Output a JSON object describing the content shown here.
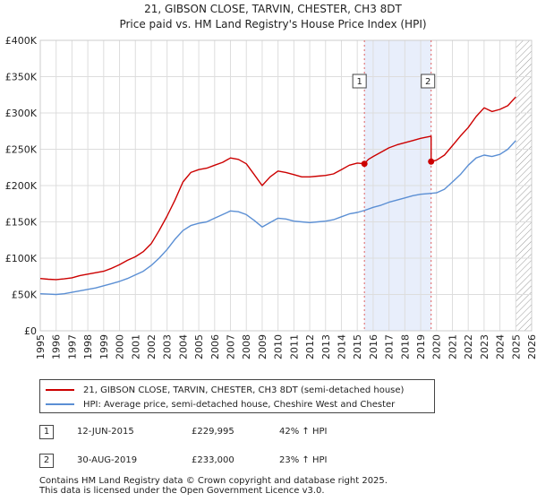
{
  "chart_data": {
    "type": "line",
    "title": "21, GIBSON CLOSE, TARVIN, CHESTER, CH3 8DT",
    "subtitle": "Price paid vs. HM Land Registry's House Price Index (HPI)",
    "xlabel": "",
    "ylabel": "",
    "xlim": [
      1995,
      2026
    ],
    "ylim": [
      0,
      400000
    ],
    "x_ticks": [
      "1995",
      "1996",
      "1997",
      "1998",
      "1999",
      "2000",
      "2001",
      "2002",
      "2003",
      "2004",
      "2005",
      "2006",
      "2007",
      "2008",
      "2009",
      "2010",
      "2011",
      "2012",
      "2013",
      "2014",
      "2015",
      "2016",
      "2017",
      "2018",
      "2019",
      "2020",
      "2021",
      "2022",
      "2023",
      "2024",
      "2025",
      "2026"
    ],
    "y_ticks": [
      {
        "value": 0,
        "label": "£0"
      },
      {
        "value": 50000,
        "label": "£50K"
      },
      {
        "value": 100000,
        "label": "£100K"
      },
      {
        "value": 150000,
        "label": "£150K"
      },
      {
        "value": 200000,
        "label": "£200K"
      },
      {
        "value": 250000,
        "label": "£250K"
      },
      {
        "value": 300000,
        "label": "£300K"
      },
      {
        "value": 350000,
        "label": "£350K"
      },
      {
        "value": 400000,
        "label": "£400K"
      }
    ],
    "grid": true,
    "series": [
      {
        "name": "21, GIBSON CLOSE, TARVIN, CHESTER, CH3 8DT (semi-detached house)",
        "color": "#cc0000",
        "points": [
          [
            1995.0,
            72000
          ],
          [
            1995.5,
            71000
          ],
          [
            1996.0,
            70500
          ],
          [
            1996.5,
            71500
          ],
          [
            1997.0,
            73000
          ],
          [
            1997.5,
            76000
          ],
          [
            1998.0,
            78000
          ],
          [
            1998.5,
            80000
          ],
          [
            1999.0,
            82000
          ],
          [
            1999.5,
            86000
          ],
          [
            2000.0,
            91000
          ],
          [
            2000.5,
            97000
          ],
          [
            2001.0,
            102000
          ],
          [
            2001.5,
            109000
          ],
          [
            2002.0,
            120000
          ],
          [
            2002.5,
            138000
          ],
          [
            2003.0,
            158000
          ],
          [
            2003.5,
            180000
          ],
          [
            2004.0,
            205000
          ],
          [
            2004.5,
            218000
          ],
          [
            2005.0,
            222000
          ],
          [
            2005.5,
            224000
          ],
          [
            2006.0,
            228000
          ],
          [
            2006.5,
            232000
          ],
          [
            2007.0,
            238000
          ],
          [
            2007.5,
            236000
          ],
          [
            2008.0,
            230000
          ],
          [
            2008.5,
            215000
          ],
          [
            2009.0,
            200000
          ],
          [
            2009.5,
            212000
          ],
          [
            2010.0,
            220000
          ],
          [
            2010.5,
            218000
          ],
          [
            2011.0,
            215000
          ],
          [
            2011.5,
            212000
          ],
          [
            2012.0,
            212000
          ],
          [
            2012.5,
            213000
          ],
          [
            2013.0,
            214000
          ],
          [
            2013.5,
            216000
          ],
          [
            2014.0,
            222000
          ],
          [
            2014.5,
            228000
          ],
          [
            2015.0,
            231000
          ],
          [
            2015.45,
            229995
          ],
          [
            2015.7,
            236000
          ],
          [
            2016.0,
            240000
          ],
          [
            2016.5,
            246000
          ],
          [
            2017.0,
            252000
          ],
          [
            2017.5,
            256000
          ],
          [
            2018.0,
            259000
          ],
          [
            2018.5,
            262000
          ],
          [
            2019.0,
            265000
          ],
          [
            2019.66,
            268000
          ],
          [
            2019.66,
            233000
          ],
          [
            2020.0,
            235000
          ],
          [
            2020.5,
            242000
          ],
          [
            2021.0,
            255000
          ],
          [
            2021.5,
            268000
          ],
          [
            2022.0,
            280000
          ],
          [
            2022.5,
            295000
          ],
          [
            2023.0,
            307000
          ],
          [
            2023.5,
            302000
          ],
          [
            2024.0,
            305000
          ],
          [
            2024.5,
            310000
          ],
          [
            2025.0,
            322000
          ]
        ]
      },
      {
        "name": "HPI: Average price, semi-detached house, Cheshire West and Chester",
        "color": "#5b8fd4",
        "points": [
          [
            1995.0,
            51000
          ],
          [
            1995.5,
            50500
          ],
          [
            1996.0,
            50000
          ],
          [
            1996.5,
            51000
          ],
          [
            1997.0,
            53000
          ],
          [
            1997.5,
            55000
          ],
          [
            1998.0,
            57000
          ],
          [
            1998.5,
            59000
          ],
          [
            1999.0,
            62000
          ],
          [
            1999.5,
            65000
          ],
          [
            2000.0,
            68000
          ],
          [
            2000.5,
            72000
          ],
          [
            2001.0,
            77000
          ],
          [
            2001.5,
            82000
          ],
          [
            2002.0,
            90000
          ],
          [
            2002.5,
            100000
          ],
          [
            2003.0,
            112000
          ],
          [
            2003.5,
            126000
          ],
          [
            2004.0,
            138000
          ],
          [
            2004.5,
            145000
          ],
          [
            2005.0,
            148000
          ],
          [
            2005.5,
            150000
          ],
          [
            2006.0,
            155000
          ],
          [
            2006.5,
            160000
          ],
          [
            2007.0,
            165000
          ],
          [
            2007.5,
            164000
          ],
          [
            2008.0,
            160000
          ],
          [
            2008.5,
            152000
          ],
          [
            2009.0,
            143000
          ],
          [
            2009.5,
            149000
          ],
          [
            2010.0,
            155000
          ],
          [
            2010.5,
            154000
          ],
          [
            2011.0,
            151000
          ],
          [
            2011.5,
            150000
          ],
          [
            2012.0,
            149000
          ],
          [
            2012.5,
            150000
          ],
          [
            2013.0,
            151000
          ],
          [
            2013.5,
            153000
          ],
          [
            2014.0,
            157000
          ],
          [
            2014.5,
            161000
          ],
          [
            2015.0,
            163000
          ],
          [
            2015.5,
            166000
          ],
          [
            2016.0,
            170000
          ],
          [
            2016.5,
            173000
          ],
          [
            2017.0,
            177000
          ],
          [
            2017.5,
            180000
          ],
          [
            2018.0,
            183000
          ],
          [
            2018.5,
            186000
          ],
          [
            2019.0,
            188000
          ],
          [
            2019.5,
            189000
          ],
          [
            2020.0,
            190000
          ],
          [
            2020.5,
            195000
          ],
          [
            2021.0,
            205000
          ],
          [
            2021.5,
            215000
          ],
          [
            2022.0,
            228000
          ],
          [
            2022.5,
            238000
          ],
          [
            2023.0,
            242000
          ],
          [
            2023.5,
            240000
          ],
          [
            2024.0,
            243000
          ],
          [
            2024.5,
            250000
          ],
          [
            2025.0,
            262000
          ]
        ]
      }
    ],
    "sales": [
      {
        "id": "1",
        "x": 2015.45,
        "price": 229995,
        "date": "12-JUN-2015",
        "price_label": "£229,995",
        "hpi": "42% ↑ HPI"
      },
      {
        "id": "2",
        "x": 2019.66,
        "price": 233000,
        "date": "30-AUG-2019",
        "price_label": "£233,000",
        "hpi": "23% ↑ HPI"
      }
    ],
    "highlight_range": [
      2015.45,
      2019.66
    ],
    "hatched_from": 2025.0,
    "legend": [
      {
        "label": "21, GIBSON CLOSE, TARVIN, CHESTER, CH3 8DT (semi-detached house)",
        "color": "#cc0000"
      },
      {
        "label": "HPI: Average price, semi-detached house, Cheshire West and Chester",
        "color": "#5b8fd4"
      }
    ]
  },
  "footer": {
    "line1": "Contains HM Land Registry data © Crown copyright and database right 2025.",
    "line2": "This data is licensed under the Open Government Licence v3.0."
  }
}
